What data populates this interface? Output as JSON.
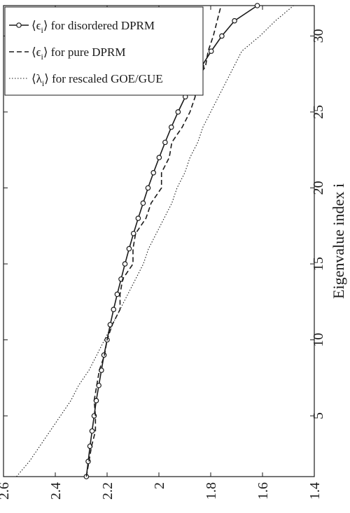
{
  "chart_data": {
    "type": "line",
    "orientation": "rotated-90-clockwise",
    "xlabel": "Eigenvalue index i",
    "ylabel": "",
    "xlim": [
      1,
      32
    ],
    "ylim": [
      1.4,
      2.6
    ],
    "x_ticks": [
      5,
      10,
      15,
      20,
      25,
      30
    ],
    "y_ticks": [
      2.6,
      2.4,
      2.2,
      2.0,
      1.8,
      1.6,
      1.4
    ],
    "y_tick_labels": [
      "2.6",
      "2.4",
      "2.2",
      "2",
      "1.8",
      "1.6",
      "1.4"
    ],
    "grid": false,
    "legend_position": "top-left",
    "legend": [
      {
        "prefix": "⟨ϵ",
        "sub": "i",
        "suffix": "⟩ for disordered DPRM"
      },
      {
        "prefix": "⟨ϵ",
        "sub": "i",
        "suffix": "⟩ for pure DPRM"
      },
      {
        "prefix": "⟨λ",
        "sub": "i",
        "suffix": "⟩ for rescaled GOE/GUE"
      }
    ],
    "series": [
      {
        "style": "solid-circle-markers",
        "color": "#1a1a1a",
        "x": [
          1,
          2,
          3,
          4,
          5,
          6,
          7,
          8,
          9,
          10,
          11,
          12,
          13,
          14,
          15,
          16,
          17,
          18,
          19,
          20,
          21,
          22,
          23,
          24,
          25,
          26,
          27,
          28,
          29,
          30,
          31,
          32
        ],
        "values": [
          2.28,
          2.273,
          2.266,
          2.258,
          2.25,
          2.242,
          2.232,
          2.222,
          2.212,
          2.2,
          2.188,
          2.175,
          2.161,
          2.146,
          2.131,
          2.115,
          2.098,
          2.08,
          2.061,
          2.042,
          2.021,
          1.999,
          1.976,
          1.952,
          1.926,
          1.898,
          1.868,
          1.835,
          1.798,
          1.757,
          1.708,
          1.62
        ]
      },
      {
        "style": "dashed",
        "color": "#1a1a1a",
        "x": [
          1,
          2,
          3,
          4,
          5,
          6,
          7,
          8,
          9,
          10,
          11,
          12,
          13,
          14,
          15,
          16,
          17,
          18,
          19,
          20,
          21,
          22,
          23,
          24,
          25,
          26,
          27,
          28,
          29,
          30,
          31,
          32
        ],
        "values": [
          2.28,
          2.27,
          2.26,
          2.245,
          2.245,
          2.25,
          2.24,
          2.23,
          2.21,
          2.2,
          2.18,
          2.15,
          2.15,
          2.14,
          2.1,
          2.1,
          2.09,
          2.05,
          2.03,
          1.99,
          1.99,
          1.96,
          1.95,
          1.91,
          1.88,
          1.86,
          1.86,
          1.82,
          1.81,
          1.79,
          1.775,
          1.76
        ]
      },
      {
        "style": "dotted",
        "color": "#1a1a1a",
        "x": [
          1,
          2,
          3,
          4,
          5,
          6,
          7,
          8,
          9,
          10,
          11,
          12,
          13,
          14,
          15,
          16,
          17,
          18,
          19,
          20,
          21,
          22,
          23,
          24,
          25,
          26,
          27,
          28,
          29,
          30,
          31,
          32
        ],
        "values": [
          2.55,
          2.5,
          2.46,
          2.42,
          2.38,
          2.34,
          2.31,
          2.27,
          2.24,
          2.21,
          2.18,
          2.15,
          2.12,
          2.09,
          2.06,
          2.04,
          2.01,
          1.98,
          1.95,
          1.93,
          1.9,
          1.88,
          1.85,
          1.83,
          1.8,
          1.77,
          1.74,
          1.71,
          1.68,
          1.61,
          1.55,
          1.48
        ]
      }
    ]
  }
}
